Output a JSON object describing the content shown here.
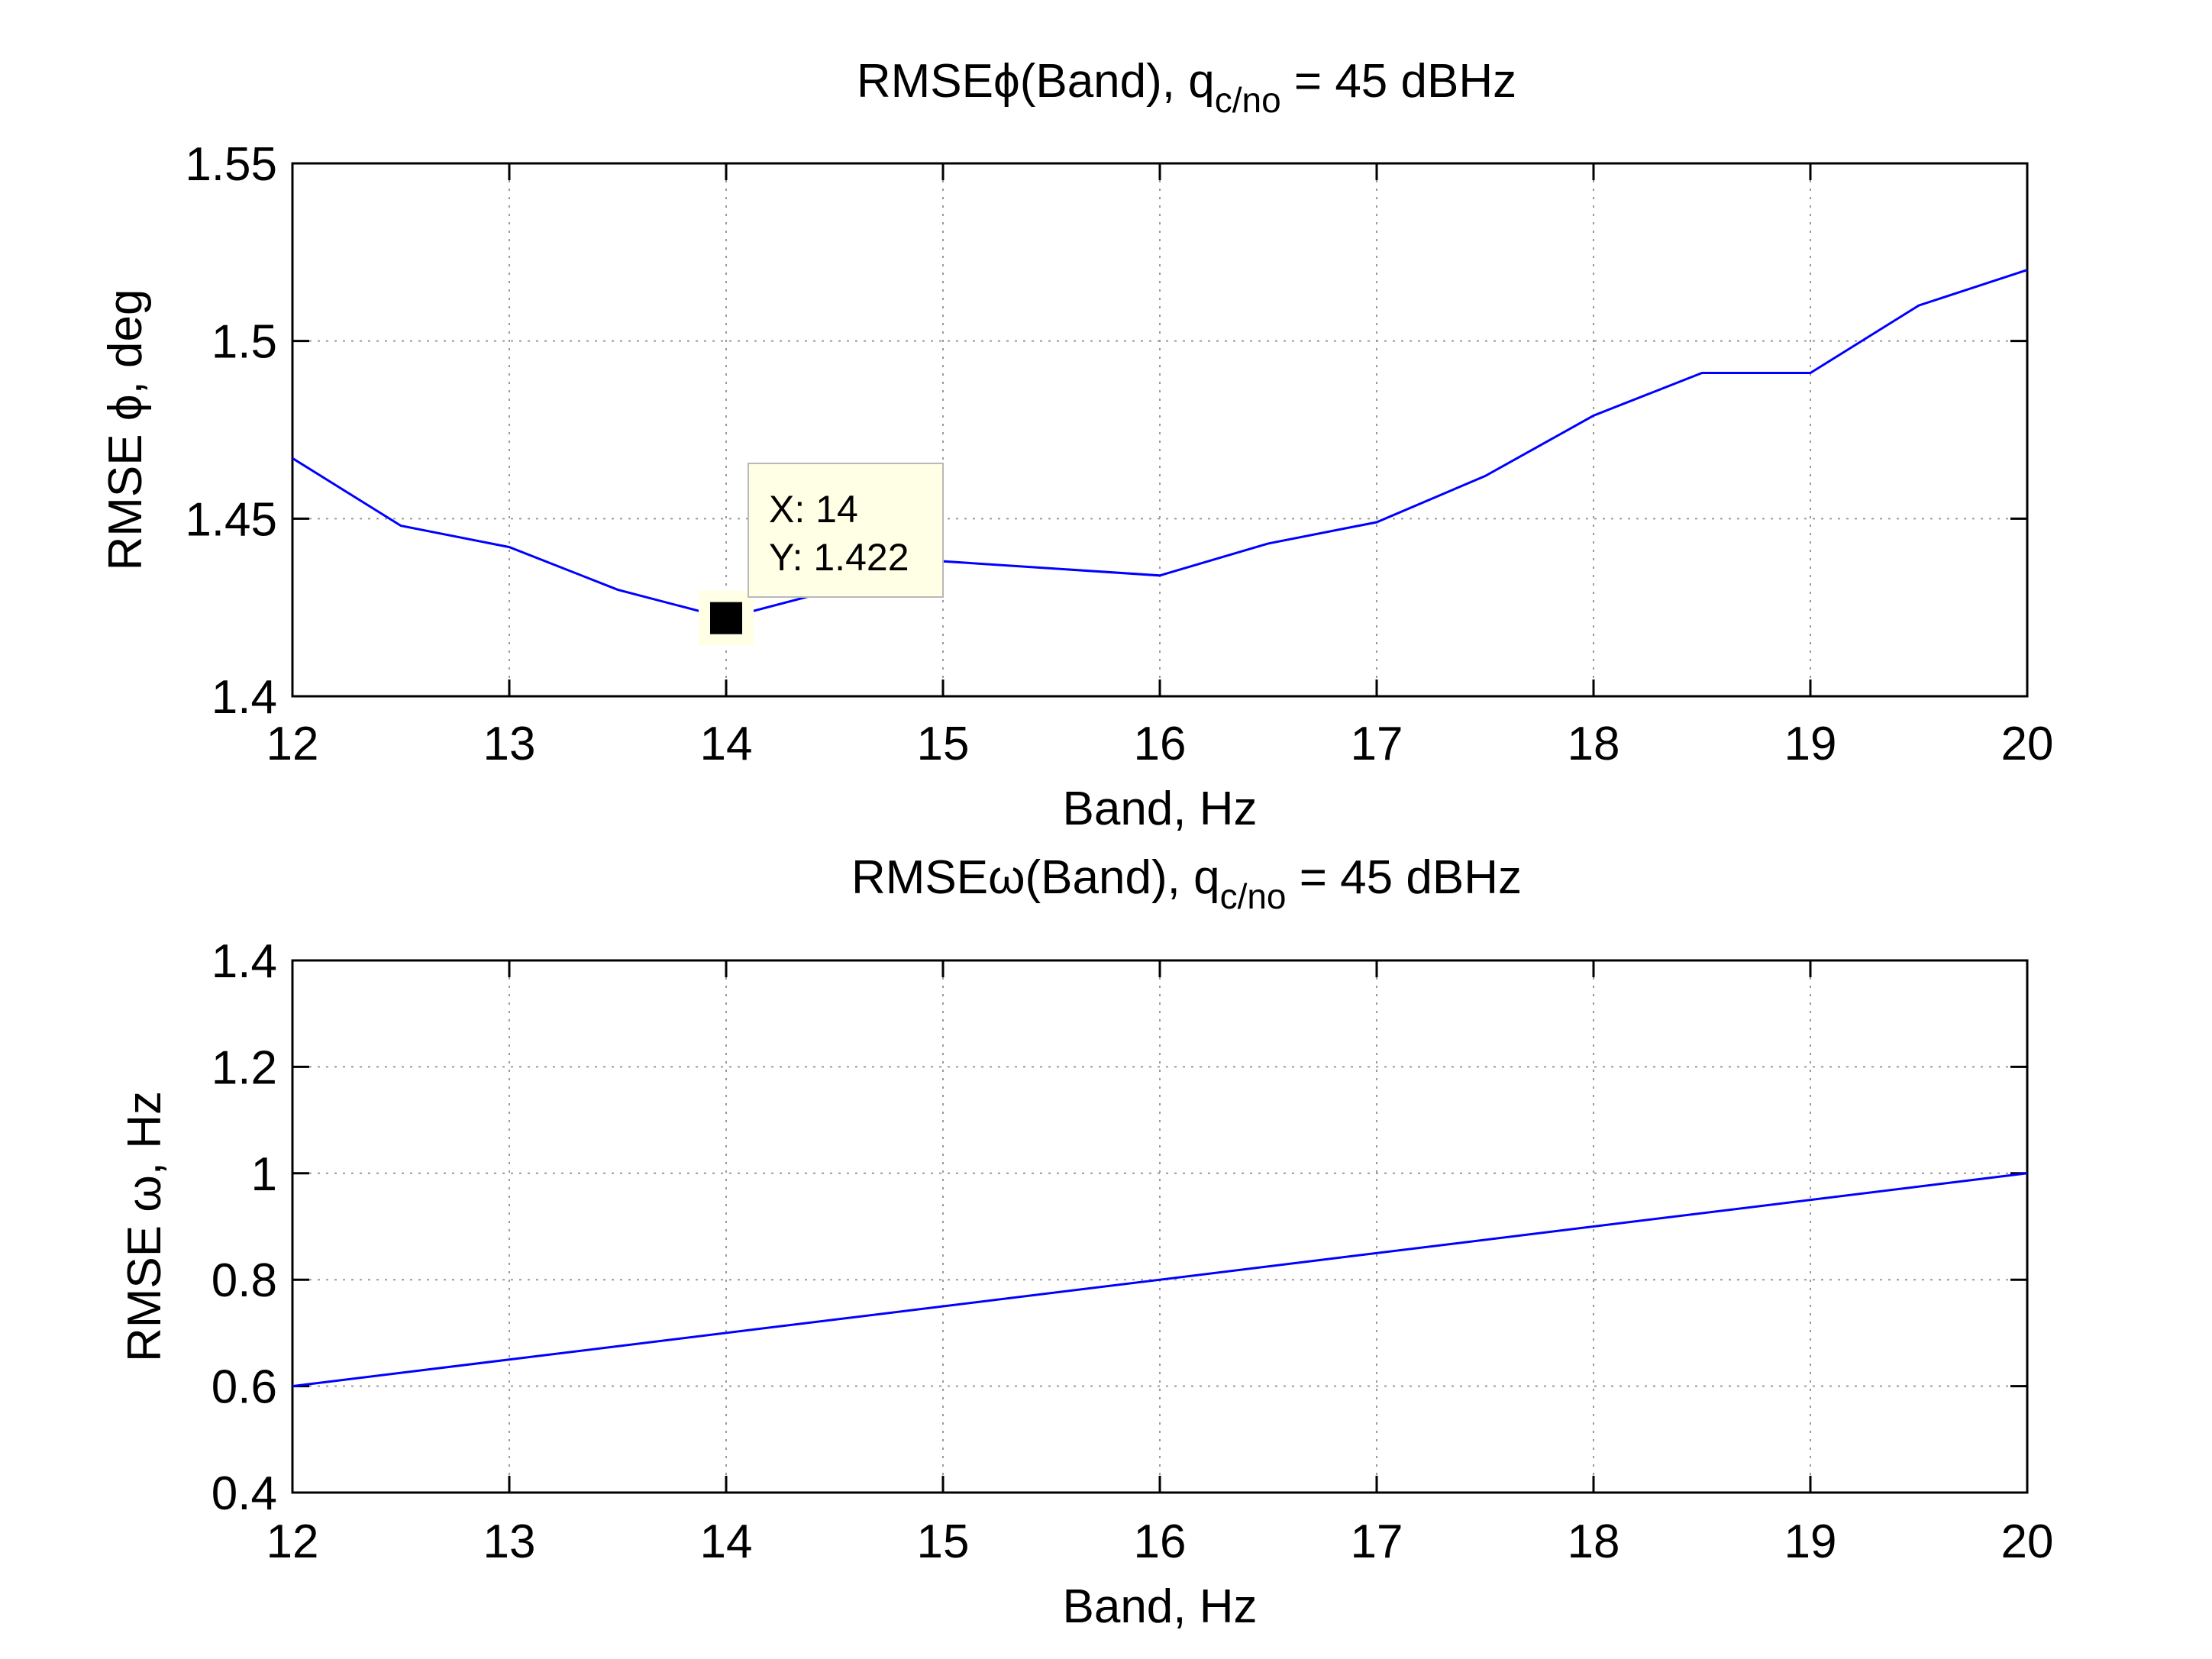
{
  "colors": {
    "series": "#0000ff",
    "tooltip_bg": "#ffffe6",
    "marker": "#000000"
  },
  "chart_data": [
    {
      "type": "line",
      "title": {
        "main": "RMSEϕ(Band), q",
        "sub": "c/no",
        "suffix": " = 45 dBHz"
      },
      "xlabel": "Band, Hz",
      "ylabel": "RMSE ϕ, deg",
      "xlim": [
        12,
        20
      ],
      "ylim": [
        1.4,
        1.55
      ],
      "xticks": [
        12,
        13,
        14,
        15,
        16,
        17,
        18,
        19,
        20
      ],
      "yticks": [
        1.4,
        1.45,
        1.5,
        1.55
      ],
      "xtick_labels": [
        "12",
        "13",
        "14",
        "15",
        "16",
        "17",
        "18",
        "19",
        "20"
      ],
      "ytick_labels": [
        "1.4",
        "1.45",
        "1.5",
        "1.55"
      ],
      "grid": true,
      "series": [
        {
          "x": [
            12,
            12.5,
            13,
            13.5,
            14,
            14.5,
            15,
            15.5,
            16,
            16.5,
            17,
            17.5,
            18,
            18.5,
            19,
            19.5,
            20
          ],
          "y": [
            1.467,
            1.448,
            1.442,
            1.43,
            1.422,
            1.43,
            1.438,
            1.436,
            1.434,
            1.443,
            1.449,
            1.462,
            1.479,
            1.491,
            1.491,
            1.51,
            1.52
          ]
        }
      ],
      "datatip": {
        "x": 14,
        "y": 1.422,
        "x_text": "X: 14",
        "y_text": "Y: 1.422"
      }
    },
    {
      "type": "line",
      "title": {
        "main": "RMSEω(Band), q",
        "sub": "c/no",
        "suffix": " = 45 dBHz"
      },
      "xlabel": "Band, Hz",
      "ylabel": "RMSE ω, Hz",
      "xlim": [
        12,
        20
      ],
      "ylim": [
        0.4,
        1.4
      ],
      "xticks": [
        12,
        13,
        14,
        15,
        16,
        17,
        18,
        19,
        20
      ],
      "yticks": [
        0.4,
        0.6,
        0.8,
        1.0,
        1.2,
        1.4
      ],
      "xtick_labels": [
        "12",
        "13",
        "14",
        "15",
        "16",
        "17",
        "18",
        "19",
        "20"
      ],
      "ytick_labels": [
        "0.4",
        "0.6",
        "0.8",
        "1",
        "1.2",
        "1.4"
      ],
      "grid": true,
      "series": [
        {
          "x": [
            12,
            20
          ],
          "y": [
            0.6,
            1.0
          ]
        }
      ]
    }
  ]
}
